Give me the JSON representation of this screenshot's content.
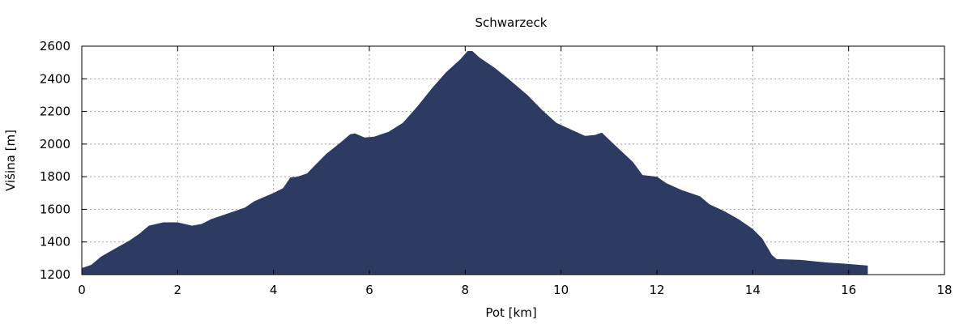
{
  "chart_data": {
    "type": "area",
    "title": "Schwarzeck",
    "xlabel": "Pot [km]",
    "ylabel": "Višina [m]",
    "xlim": [
      0,
      18
    ],
    "ylim": [
      1200,
      2600
    ],
    "xticks": [
      0,
      2,
      4,
      6,
      8,
      10,
      12,
      14,
      16,
      18
    ],
    "yticks": [
      1200,
      1400,
      1600,
      1800,
      2000,
      2200,
      2400,
      2600
    ],
    "grid": true,
    "legend": "none",
    "fill_color": "#2d3a62",
    "series": [
      {
        "x": [
          0,
          0.2,
          0.4,
          0.7,
          1.0,
          1.2,
          1.4,
          1.7,
          2.0,
          2.3,
          2.5,
          2.7,
          3.0,
          3.4,
          3.6,
          4.0,
          4.2,
          4.35,
          4.5,
          4.7,
          4.9,
          5.1,
          5.4,
          5.6,
          5.7,
          5.9,
          6.1,
          6.4,
          6.7,
          7.0,
          7.3,
          7.6,
          7.9,
          8.05,
          8.15,
          8.3,
          8.6,
          8.9,
          9.3,
          9.6,
          9.9,
          10.2,
          10.5,
          10.7,
          10.85,
          11.1,
          11.5,
          11.7,
          12.0,
          12.2,
          12.5,
          12.9,
          13.1,
          13.4,
          13.7,
          14.0,
          14.2,
          14.4,
          14.5,
          15.0,
          15.5,
          16.0,
          16.4
        ],
        "y": [
          1240,
          1260,
          1310,
          1360,
          1410,
          1450,
          1500,
          1520,
          1520,
          1500,
          1510,
          1540,
          1570,
          1610,
          1650,
          1700,
          1730,
          1795,
          1800,
          1820,
          1880,
          1940,
          2010,
          2060,
          2065,
          2040,
          2045,
          2075,
          2130,
          2230,
          2340,
          2440,
          2520,
          2570,
          2570,
          2530,
          2470,
          2400,
          2300,
          2210,
          2130,
          2090,
          2050,
          2055,
          2070,
          2000,
          1890,
          1810,
          1800,
          1760,
          1720,
          1680,
          1630,
          1590,
          1540,
          1480,
          1420,
          1320,
          1295,
          1290,
          1275,
          1265,
          1255
        ]
      }
    ]
  }
}
